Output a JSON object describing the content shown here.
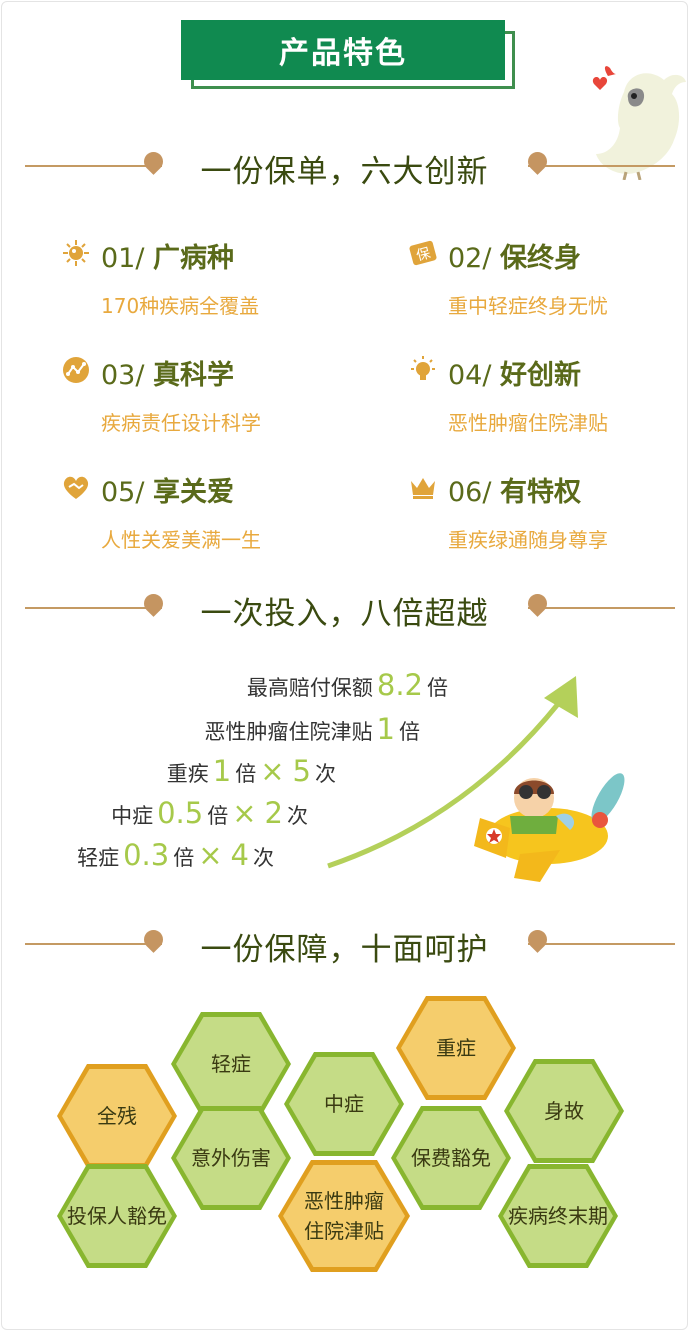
{
  "banner": {
    "title": "产品特色"
  },
  "sections": {
    "s1": "一份保单，六大创新",
    "s2": "一次投入，八倍超越",
    "s3": "一份保障，十面呵护"
  },
  "features": [
    {
      "num": "01/",
      "name": "广病种",
      "desc": "170种疾病全覆盖",
      "icon": "virus-icon"
    },
    {
      "num": "02/",
      "name": "保终身",
      "desc": "重中轻症终身无忧",
      "icon": "bao-tag-icon",
      "icon_text": "保"
    },
    {
      "num": "03/",
      "name": "真科学",
      "desc": "疾病责任设计科学",
      "icon": "chart-circle-icon"
    },
    {
      "num": "04/",
      "name": "好创新",
      "desc": "恶性肿瘤住院津贴",
      "icon": "lightbulb-icon"
    },
    {
      "num": "05/",
      "name": "享关爱",
      "desc": "人性关爱美满一生",
      "icon": "heart-hands-icon"
    },
    {
      "num": "06/",
      "name": "有特权",
      "desc": "重疾绿通随身尊享",
      "icon": "crown-icon"
    }
  ],
  "multipliers": [
    {
      "label": "最高赔付保额",
      "value": "8.2",
      "unit": "倍",
      "times": "",
      "count": "",
      "suffix": ""
    },
    {
      "label": "恶性肿瘤住院津贴",
      "value": "1",
      "unit": "倍",
      "times": "",
      "count": "",
      "suffix": ""
    },
    {
      "label": "重疾",
      "value": "1",
      "unit": "倍",
      "times": "×",
      "count": "5",
      "suffix": "次"
    },
    {
      "label": "中症",
      "value": "0.5",
      "unit": "倍",
      "times": "×",
      "count": "2",
      "suffix": "次"
    },
    {
      "label": "轻症",
      "value": "0.3",
      "unit": "倍",
      "times": "×",
      "count": "4",
      "suffix": "次"
    }
  ],
  "hexes": [
    {
      "label": "轻症",
      "color": "green"
    },
    {
      "label": "重症",
      "color": "yellow"
    },
    {
      "label": "全残",
      "color": "yellow"
    },
    {
      "label": "中症",
      "color": "green"
    },
    {
      "label": "身故",
      "color": "green"
    },
    {
      "label": "意外伤害",
      "color": "green"
    },
    {
      "label": "保费豁免",
      "color": "green"
    },
    {
      "label": "投保人豁免",
      "color": "green"
    },
    {
      "label": "恶性肿瘤住院津贴",
      "color": "yellow"
    },
    {
      "label": "疾病终末期",
      "color": "green"
    }
  ],
  "colors": {
    "banner_green": "#108a50",
    "title_text": "#5a6a1a",
    "desc_orange": "#e8a93e",
    "accent_brown": "#c49a63",
    "hex_green": "#c5dc86",
    "hex_yellow": "#f5cd6c",
    "value_green": "#a6c94a"
  }
}
